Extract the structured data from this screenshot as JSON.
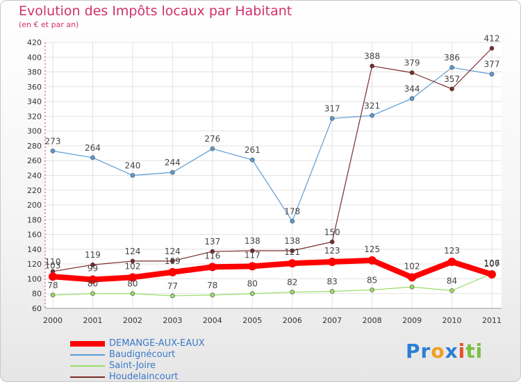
{
  "chart_data": {
    "type": "line",
    "title": "Evolution des Impôts locaux par Habitant",
    "subtitle": "(en € et par an)",
    "categories": [
      "2000",
      "2001",
      "2002",
      "2003",
      "2004",
      "2005",
      "2006",
      "2007",
      "2008",
      "2009",
      "2010",
      "2011"
    ],
    "ylim": [
      60,
      420
    ],
    "yticks": [
      60,
      80,
      100,
      120,
      140,
      160,
      180,
      200,
      220,
      240,
      260,
      280,
      300,
      320,
      340,
      360,
      380,
      400,
      420
    ],
    "grid": true,
    "series": [
      {
        "name": "DEMANGE-AUX-EAUX",
        "color": "#ff0000",
        "values": [
          103,
          99,
          102,
          109,
          116,
          117,
          121,
          123,
          125,
          102,
          123,
          106
        ],
        "labels": [
          "103",
          "99",
          "102",
          "109",
          "116",
          "117",
          "121",
          "123",
          "125",
          "102",
          "123",
          "106"
        ],
        "emphasis": true
      },
      {
        "name": "Baudignécourt",
        "color": "#5a9bd5",
        "values": [
          273,
          264,
          240,
          244,
          276,
          261,
          178,
          317,
          321,
          344,
          386,
          377
        ],
        "labels": [
          "273",
          "264",
          "240",
          "244",
          "276",
          "261",
          "178",
          "317",
          "321",
          "344",
          "386",
          "377"
        ]
      },
      {
        "name": "Saint-Joire",
        "color": "#99dd66",
        "values": [
          78,
          80,
          80,
          77,
          78,
          80,
          82,
          83,
          85,
          89,
          84,
          107
        ],
        "labels": [
          "78",
          "80",
          "80",
          "77",
          "78",
          "80",
          "82",
          "83",
          "85",
          "",
          "84",
          "107"
        ]
      },
      {
        "name": "Houdelaincourt",
        "color": "#7a2a2a",
        "values": [
          110,
          119,
          124,
          124,
          137,
          138,
          138,
          150,
          388,
          379,
          357,
          412
        ],
        "labels": [
          "110",
          "119",
          "124",
          "124",
          "137",
          "138",
          "138",
          "150",
          "388",
          "379",
          "357",
          "412"
        ]
      }
    ],
    "legend_position": "bottom-left"
  },
  "logo": {
    "text": "Proxiti",
    "letters": [
      {
        "char": "P",
        "color": "#2a7fd4"
      },
      {
        "char": "r",
        "color": "#2a7fd4"
      },
      {
        "char": "o",
        "color": "#f0a020"
      },
      {
        "char": "x",
        "color": "#2a7fd4"
      },
      {
        "char": "i",
        "color": "#e8502a"
      },
      {
        "char": "t",
        "color": "#7ac043"
      },
      {
        "char": "i",
        "color": "#7ac043"
      }
    ]
  }
}
